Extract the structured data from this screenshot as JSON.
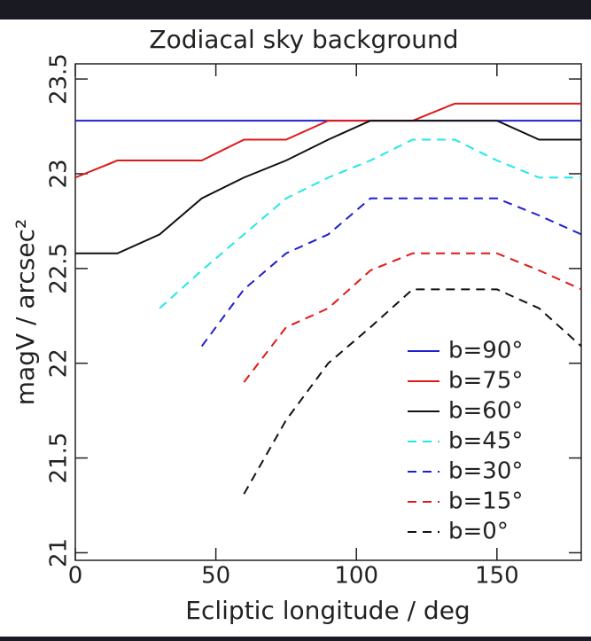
{
  "chart_data": {
    "type": "line",
    "title": "Zodiacal sky background",
    "xlabel": "Ecliptic longitude / deg",
    "ylabel": "magV / arcsec²",
    "x": [
      0,
      15,
      30,
      45,
      60,
      75,
      90,
      105,
      120,
      135,
      150,
      165,
      180
    ],
    "xlim": [
      0,
      180
    ],
    "xticks": [
      0,
      50,
      100,
      150
    ],
    "ylim": [
      20.96,
      23.58
    ],
    "yticks": [
      21,
      21.5,
      22,
      22.5,
      23,
      23.5
    ],
    "legend": "lower right",
    "series": [
      {
        "name": "b=90°",
        "color": "#1f1fd0",
        "dash": false,
        "values": [
          23.28,
          23.28,
          23.28,
          23.28,
          23.28,
          23.28,
          23.28,
          23.28,
          23.28,
          23.28,
          23.28,
          23.28,
          23.28
        ]
      },
      {
        "name": "b=75°",
        "color": "#e01818",
        "dash": false,
        "values": [
          22.98,
          23.07,
          23.07,
          23.07,
          23.18,
          23.18,
          23.28,
          23.28,
          23.28,
          23.37,
          23.37,
          23.37,
          23.37
        ]
      },
      {
        "name": "b=60°",
        "color": "#111111",
        "dash": false,
        "values": [
          22.58,
          22.58,
          22.68,
          22.87,
          22.98,
          23.07,
          23.18,
          23.28,
          23.28,
          23.28,
          23.28,
          23.18,
          23.18
        ]
      },
      {
        "name": "b=45°",
        "color": "#20e8e8",
        "dash": true,
        "values": [
          null,
          null,
          22.29,
          22.49,
          22.68,
          22.87,
          22.98,
          23.07,
          23.18,
          23.18,
          23.07,
          22.98,
          22.98
        ]
      },
      {
        "name": "b=30°",
        "color": "#1f1fd0",
        "dash": true,
        "values": [
          null,
          null,
          null,
          22.09,
          22.39,
          22.58,
          22.68,
          22.87,
          22.87,
          22.87,
          22.87,
          22.78,
          22.68
        ]
      },
      {
        "name": "b=15°",
        "color": "#e01818",
        "dash": true,
        "values": [
          null,
          null,
          null,
          null,
          21.9,
          22.19,
          22.29,
          22.49,
          22.58,
          22.58,
          22.58,
          22.49,
          22.39
        ]
      },
      {
        "name": "b=0°",
        "color": "#111111",
        "dash": true,
        "values": [
          null,
          null,
          null,
          null,
          21.31,
          21.7,
          22.0,
          22.19,
          22.39,
          22.39,
          22.39,
          22.29,
          22.09
        ]
      }
    ]
  }
}
